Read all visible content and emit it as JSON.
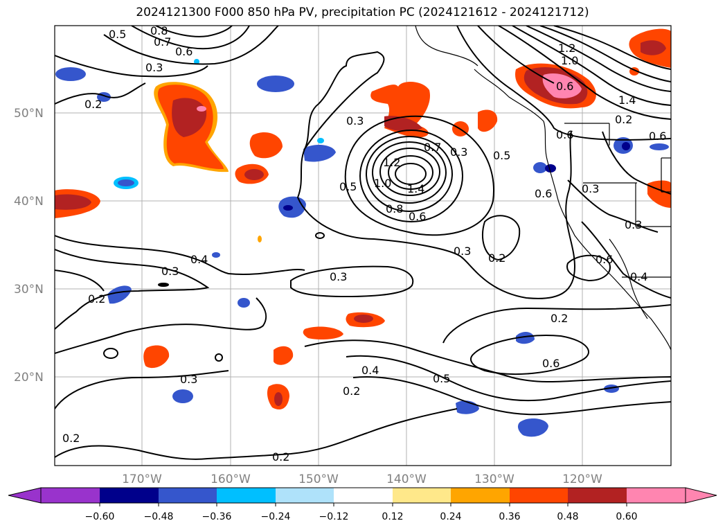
{
  "title": "2024121300 F000 850 hPa PV, precipitation PC (2024121612 - 2024121712)",
  "map": {
    "lat_labels": [
      "50°N",
      "40°N",
      "30°N",
      "20°N"
    ],
    "lon_labels": [
      "170°W",
      "160°W",
      "150°W",
      "140°W",
      "130°W",
      "120°W"
    ]
  },
  "contour_labels": [
    "0.8",
    "0.7",
    "0.6",
    "0.5",
    "0.3",
    "0.2",
    "0.3",
    "0.5",
    "0.7",
    "0.3",
    "1.2",
    "1.0",
    "1.4",
    "0.8",
    "0.6",
    "0.3",
    "0.4",
    "0.3",
    "0.2",
    "0.3",
    "0.2",
    "0.5",
    "0.6",
    "0.6",
    "0.3",
    "1.2",
    "1.0",
    "0.6",
    "1.4",
    "0.2",
    "0.6",
    "0.3",
    "0.4",
    "0.6",
    "0.3",
    "0.2",
    "0.4",
    "0.5",
    "0.2",
    "0.6",
    "0.2",
    "0.2"
  ],
  "colorbar": {
    "ticks": [
      "−0.60",
      "−0.48",
      "−0.36",
      "−0.24",
      "−0.12",
      "0.12",
      "0.24",
      "0.36",
      "0.48",
      "0.60"
    ],
    "colors": {
      "under": "#9933cc",
      "c1": "#00008b",
      "c2": "#3556cc",
      "c3": "#00bfff",
      "c4": "#afe2fa",
      "mid": "#ffffff",
      "w1": "#ffe88a",
      "w2": "#ffa500",
      "w3": "#ff4500",
      "w4": "#b22222",
      "over": "#ff85b0"
    }
  }
}
